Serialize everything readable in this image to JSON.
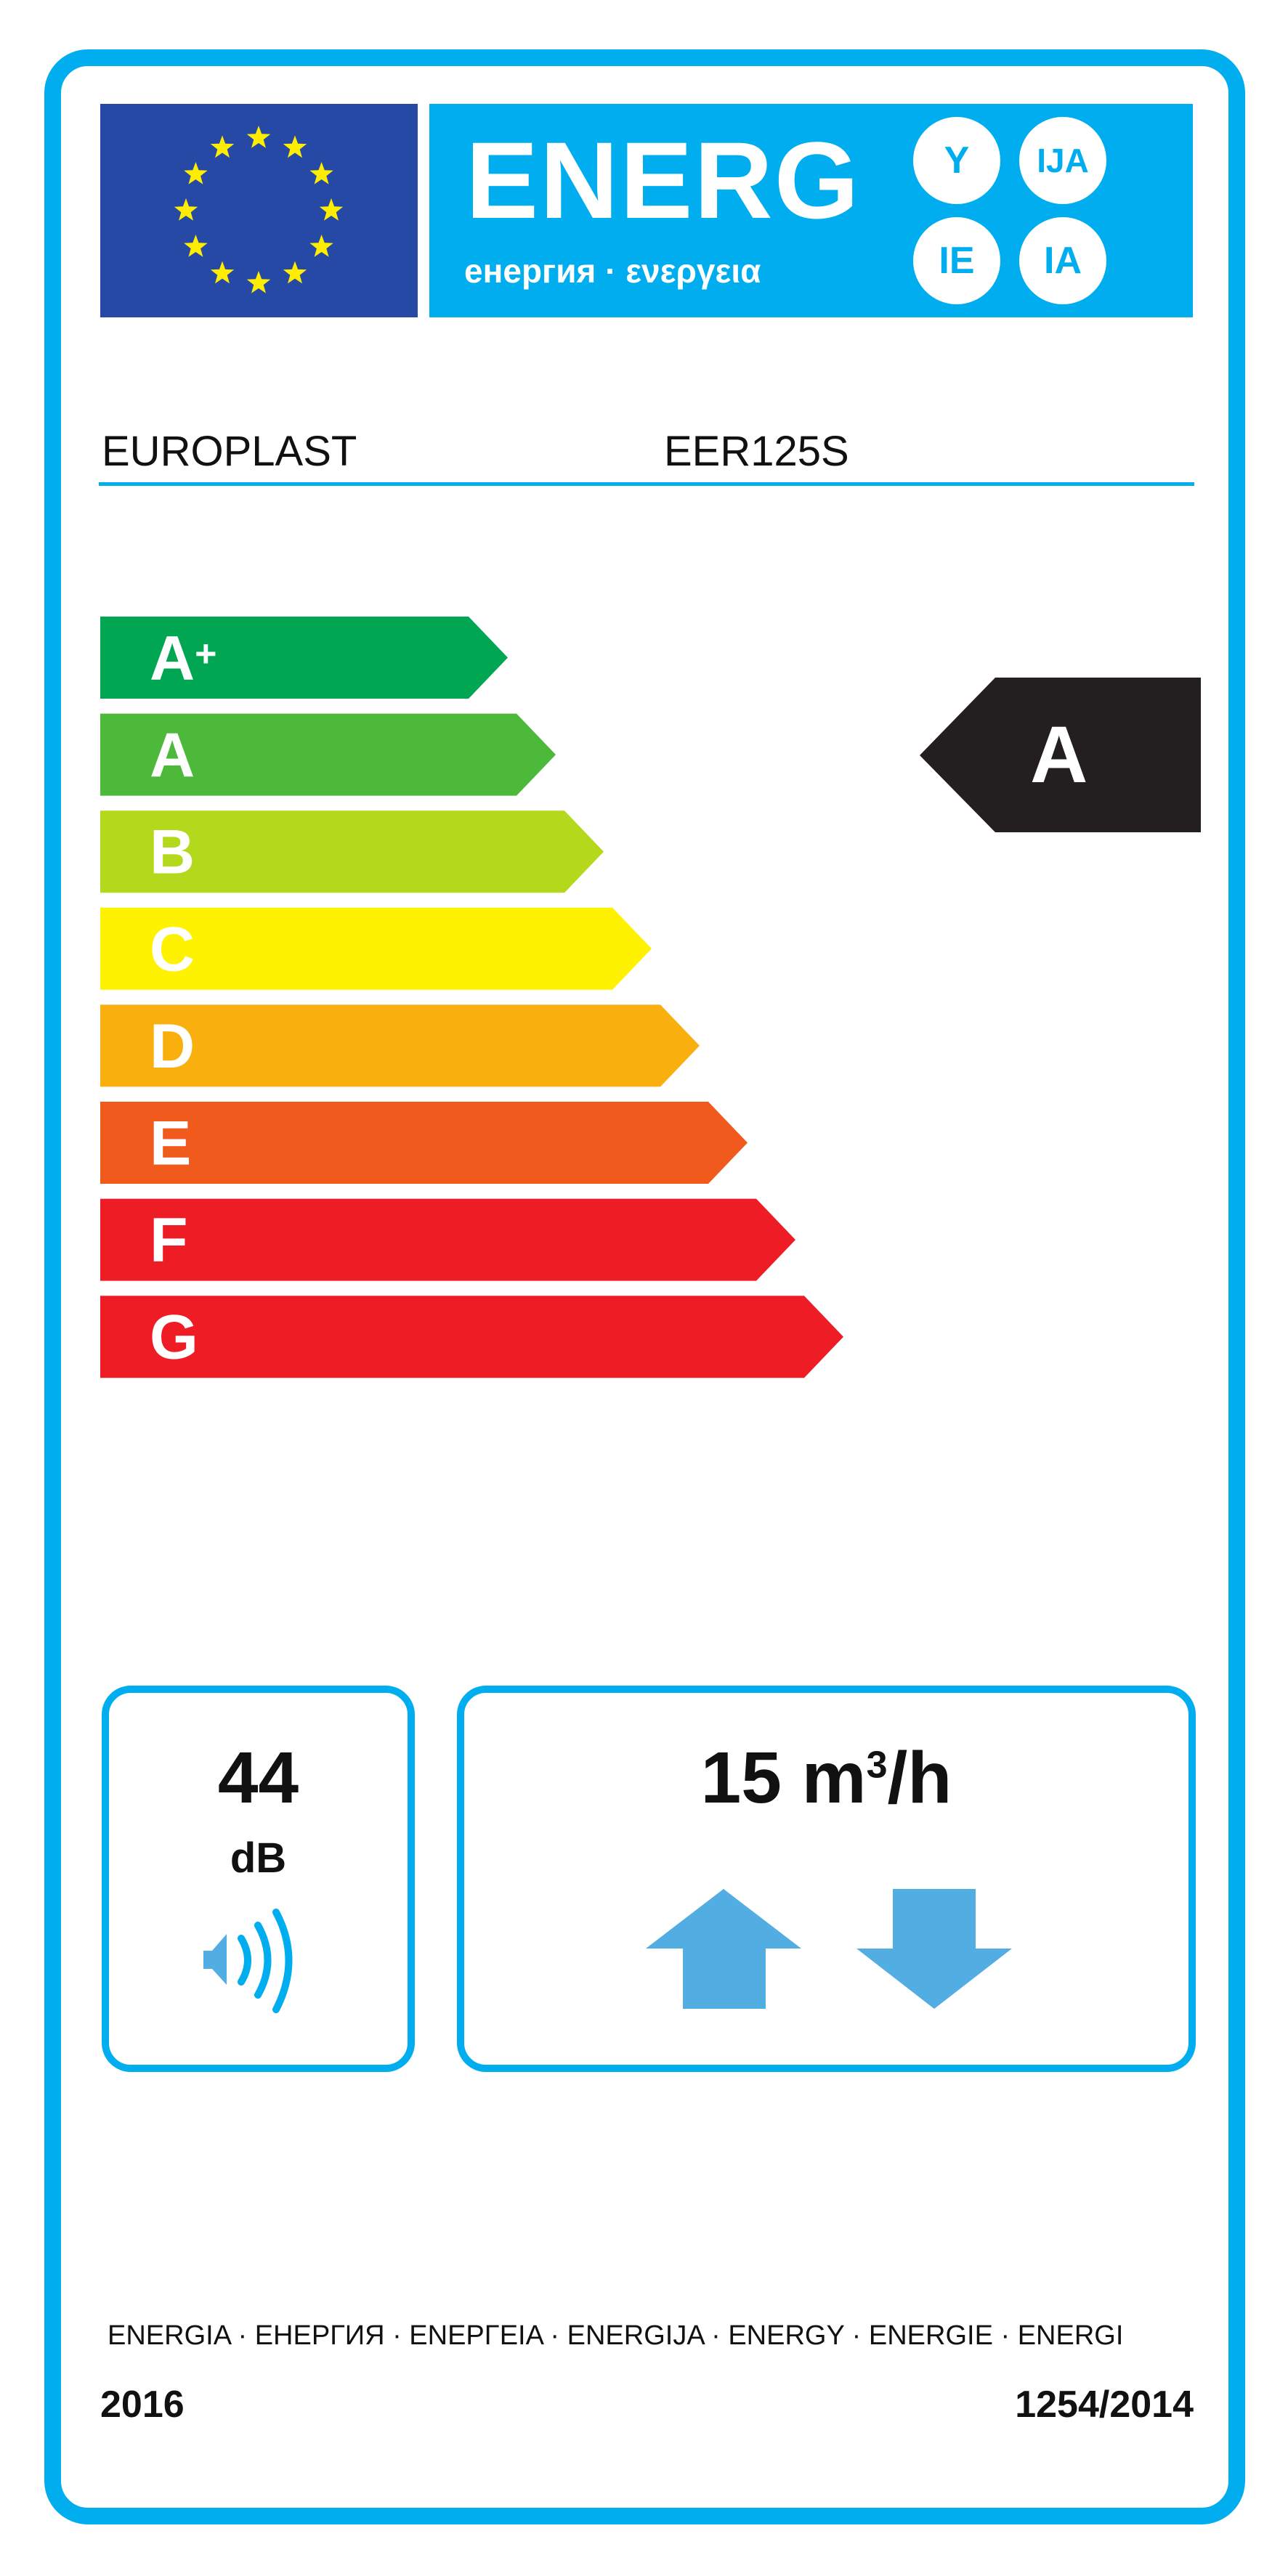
{
  "header": {
    "logo_text": "ENERG",
    "logo_subtitle": "енергия · ενεργεια",
    "suffixes": [
      "Y",
      "IJA",
      "IE",
      "IA"
    ]
  },
  "product": {
    "supplier": "EUROPLAST",
    "model": "EER125S"
  },
  "scale": {
    "classes": [
      {
        "label": "A+",
        "color": "#00a651"
      },
      {
        "label": "A",
        "color": "#4cb93a"
      },
      {
        "label": "B",
        "color": "#b4d81b"
      },
      {
        "label": "C",
        "color": "#fff200"
      },
      {
        "label": "D",
        "color": "#f9b00f"
      },
      {
        "label": "E",
        "color": "#f05a1c"
      },
      {
        "label": "F",
        "color": "#ee1c25"
      },
      {
        "label": "G",
        "color": "#ee1c25"
      }
    ],
    "rating": {
      "label": "A",
      "color": "#231f20"
    }
  },
  "noise": {
    "value": "44",
    "unit": "dB",
    "icon": "speaker-icon"
  },
  "airflow": {
    "value": "15 m",
    "sup": "3",
    "unit": "/h",
    "icon": "up-down-arrows-icon",
    "arrow_color": "#52ade3"
  },
  "footer": {
    "languages": "ENERGIA · ЕНЕРГИЯ · ΕΝΕΡΓΕΙΑ · ENERGIJA · ENERGY · ENERGIE · ENERGI",
    "year": "2016",
    "regulation": "1254/2014"
  },
  "colors": {
    "accent": "#00aeef",
    "eu_blue": "#2549a4",
    "eu_star": "#ffed00"
  }
}
